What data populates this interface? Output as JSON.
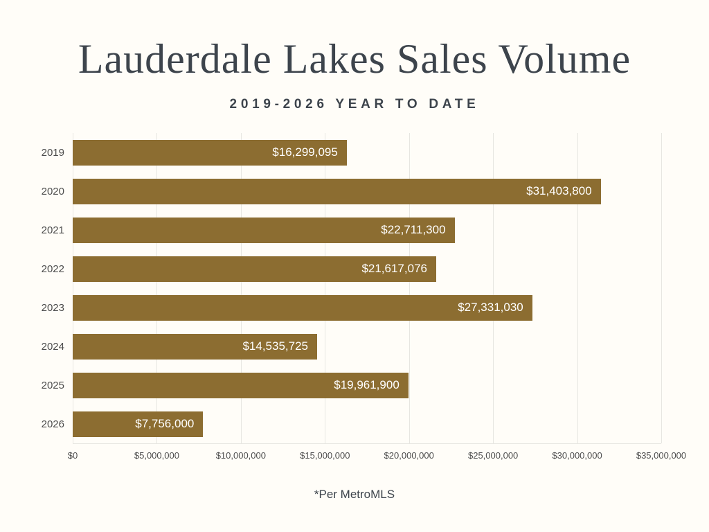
{
  "title": "Lauderdale Lakes Sales Volume",
  "subtitle": "2019-2026 YEAR TO DATE",
  "source_note": "*Per MetroMLS",
  "colors": {
    "bar": "#8c6d31",
    "bar_label": "#ffffff",
    "title_text": "#3d444c",
    "axis_text": "#4c4c4c",
    "grid": "#e7e6e1",
    "background": "#fffdf8"
  },
  "chart_data": {
    "type": "bar",
    "orientation": "horizontal",
    "title": "Lauderdale Lakes Sales Volume",
    "subtitle": "2019-2026 YEAR TO DATE",
    "xlabel": "",
    "ylabel": "",
    "categories": [
      "2019",
      "2020",
      "2021",
      "2022",
      "2023",
      "2024",
      "2025",
      "2026"
    ],
    "values": [
      16299095,
      31403800,
      22711300,
      21617076,
      27331030,
      14535725,
      19961900,
      7756000
    ],
    "value_labels": [
      "$16,299,095",
      "$31,403,800",
      "$22,711,300",
      "$21,617,076",
      "$27,331,030",
      "$14,535,725",
      "$19,961,900",
      "$7,756,000"
    ],
    "xlim": [
      0,
      35000000
    ],
    "x_ticks": [
      0,
      5000000,
      10000000,
      15000000,
      20000000,
      25000000,
      30000000,
      35000000
    ],
    "x_tick_labels": [
      "$0",
      "$5,000,000",
      "$10,000,000",
      "$15,000,000",
      "$20,000,000",
      "$25,000,000",
      "$30,000,000",
      "$35,000,000"
    ],
    "grid": true,
    "legend": false,
    "annotation": "*Per MetroMLS"
  }
}
